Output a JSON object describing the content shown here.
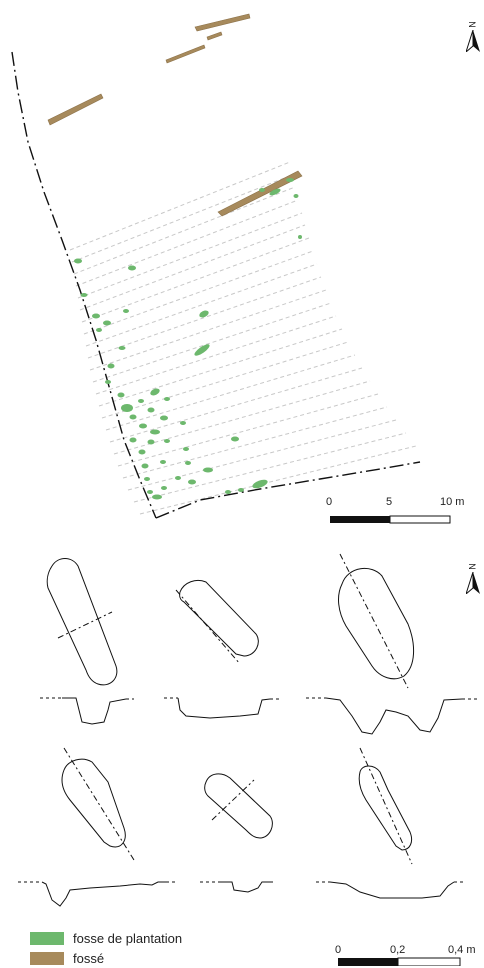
{
  "map": {
    "north_label": "N",
    "top_scale": {
      "labels": [
        "0",
        "5",
        "10 m"
      ]
    },
    "bottom_scale": {
      "labels": [
        "0",
        "0,2",
        "0,4 m"
      ]
    }
  },
  "legend": {
    "items": [
      {
        "label": "fosse de plantation",
        "color": "#6db86d"
      },
      {
        "label": "fossé",
        "color": "#a78a5c"
      }
    ]
  },
  "colors": {
    "line": "#111111",
    "dashed": "#c8c8c8"
  }
}
